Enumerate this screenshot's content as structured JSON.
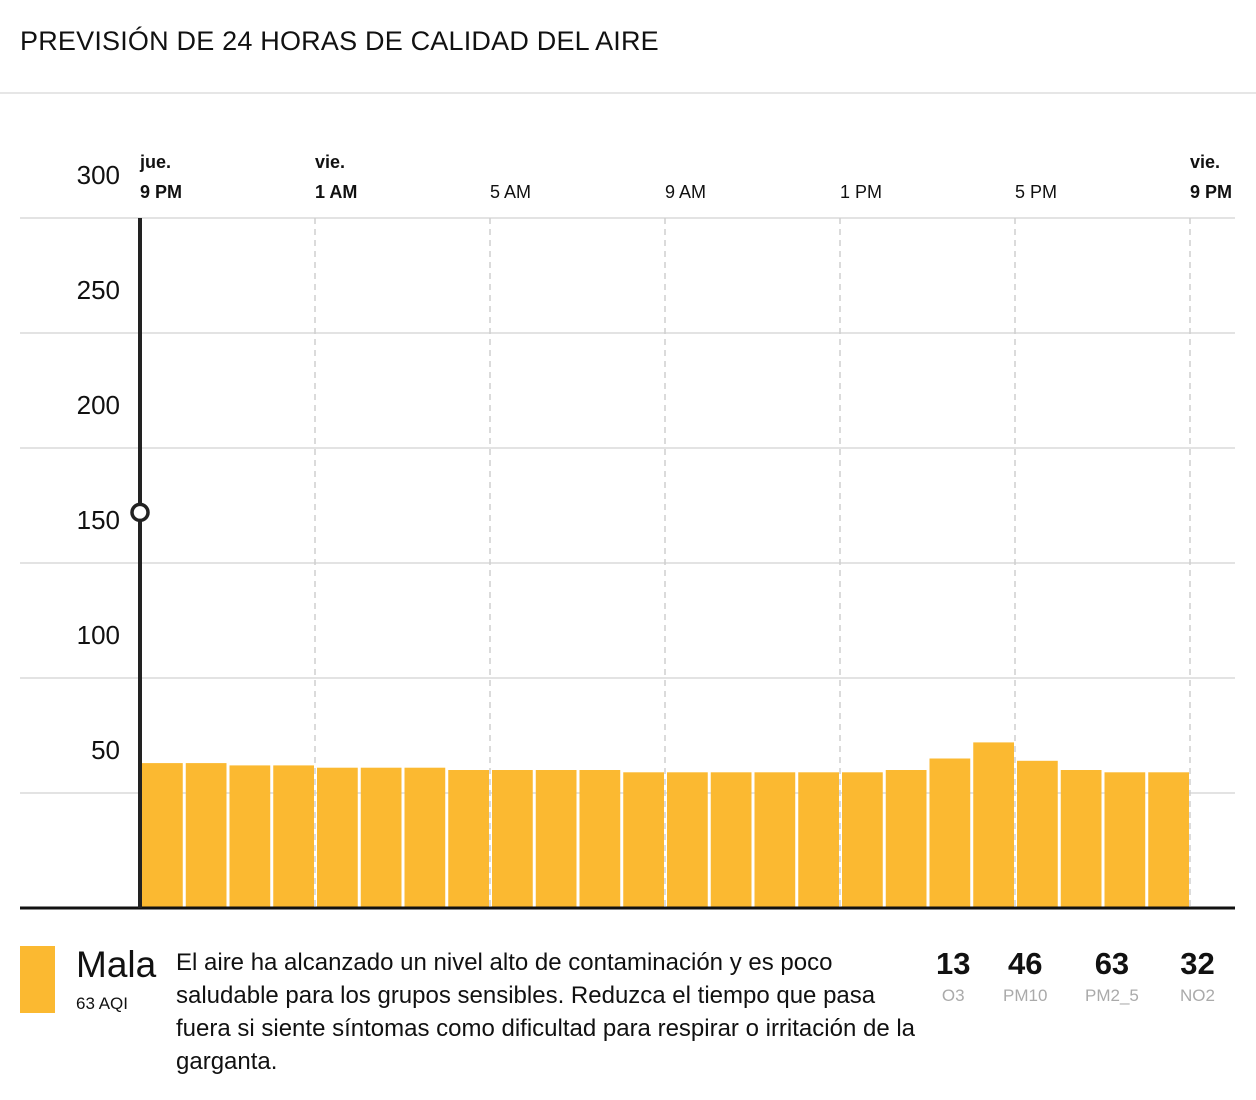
{
  "title": "PREVISIÓN DE 24 HORAS DE CALIDAD DEL AIRE",
  "chart_data": {
    "type": "bar",
    "title": "",
    "xlabel": "",
    "ylabel": "",
    "ylim": [
      0,
      300
    ],
    "yticks": [
      50,
      100,
      150,
      200,
      250,
      300
    ],
    "grid": true,
    "color": "#fbb931",
    "x_ticks": [
      {
        "day": "jue.",
        "time": "9 PM",
        "hour": 0,
        "bold": true
      },
      {
        "day": "vie.",
        "time": "1 AM",
        "hour": 4,
        "bold": true
      },
      {
        "day": "",
        "time": "5 AM",
        "hour": 8,
        "bold": false
      },
      {
        "day": "",
        "time": "9 AM",
        "hour": 12,
        "bold": false
      },
      {
        "day": "",
        "time": "1 PM",
        "hour": 16,
        "bold": false
      },
      {
        "day": "",
        "time": "5 PM",
        "hour": 20,
        "bold": false
      },
      {
        "day": "vie.",
        "time": "9 PM",
        "hour": 24,
        "bold": true
      }
    ],
    "values": [
      63,
      63,
      62,
      62,
      61,
      61,
      61,
      60,
      60,
      60,
      60,
      59,
      59,
      59,
      59,
      59,
      59,
      60,
      65,
      72,
      64,
      60,
      59,
      59
    ],
    "cursor": {
      "hour": 0,
      "value": 172
    }
  },
  "summary": {
    "level": "Mala",
    "aqi": "63 AQI",
    "color": "#fbb931",
    "description": "El aire ha alcanzado un nivel alto de contaminación y es poco saludable para los grupos sensibles. Reduzca el tiempo que pasa fuera si siente síntomas como dificultad para respirar o irritación de la garganta."
  },
  "pollutants": [
    {
      "value": "13",
      "name": "O3"
    },
    {
      "value": "46",
      "name": "PM10"
    },
    {
      "value": "63",
      "name": "PM2_5"
    },
    {
      "value": "32",
      "name": "NO2"
    }
  ]
}
